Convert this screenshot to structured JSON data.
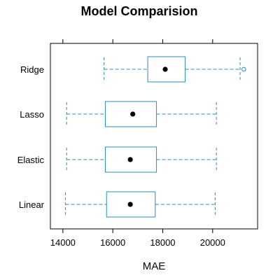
{
  "chart_data": {
    "type": "boxplot",
    "title": "Model Comparision",
    "xlabel": "MAE",
    "ylabel": "",
    "orientation": "horizontal",
    "xlim": [
      13500,
      21800
    ],
    "xticks": [
      14000,
      16000,
      18000,
      20000
    ],
    "xtick_labels": [
      "14000",
      "16000",
      "18000",
      "20000"
    ],
    "grid": false,
    "legend": "none",
    "colors": {
      "box": "#2b8cbe",
      "median": "#000000",
      "axis": "#000000"
    },
    "categories": [
      "Linear",
      "Elastic",
      "Lasso",
      "Ridge"
    ],
    "boxes": [
      {
        "name": "Linear",
        "whisker_low": 14100,
        "q1": 15750,
        "median": 16700,
        "q3": 17700,
        "whisker_high": 20100,
        "outliers": []
      },
      {
        "name": "Elastic",
        "whisker_low": 14150,
        "q1": 15700,
        "median": 16700,
        "q3": 17750,
        "whisker_high": 20150,
        "outliers": []
      },
      {
        "name": "Lasso",
        "whisker_low": 14150,
        "q1": 15700,
        "median": 16800,
        "q3": 17750,
        "whisker_high": 20150,
        "outliers": []
      },
      {
        "name": "Ridge",
        "whisker_low": 15650,
        "q1": 17400,
        "median": 18100,
        "q3": 18900,
        "whisker_high": 21100,
        "outliers": [
          21250
        ]
      }
    ]
  }
}
